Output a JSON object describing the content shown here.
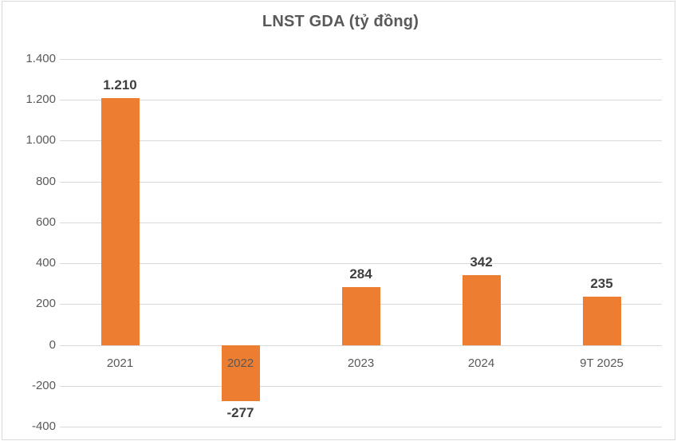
{
  "chart_data": {
    "type": "bar",
    "title": "LNST GDA (tỷ đồng)",
    "categories": [
      "2021",
      "2022",
      "2023",
      "2024",
      "9T 2025"
    ],
    "values": [
      1210,
      -277,
      284,
      342,
      235
    ],
    "data_labels": [
      "1.210",
      "-277",
      "284",
      "342",
      "235"
    ],
    "xlabel": "",
    "ylabel": "",
    "ylim": [
      -400,
      1400
    ],
    "y_ticks": [
      1400,
      1200,
      1000,
      800,
      600,
      400,
      200,
      0,
      -200,
      -400
    ],
    "y_tick_labels": [
      "1.400",
      "1.200",
      "1.000",
      "800",
      "600",
      "400",
      "200",
      "0",
      "-200",
      "-400"
    ],
    "grid": true,
    "legend": false,
    "legend_position": "none",
    "colors": {
      "bar": "#ED7D31",
      "title_text": "#595959",
      "axis_text": "#595959",
      "data_label_text": "#3F3F3F",
      "gridline": "#D9D9D9",
      "chart_border": "#D9D9D9",
      "background": "#FFFFFF"
    }
  }
}
